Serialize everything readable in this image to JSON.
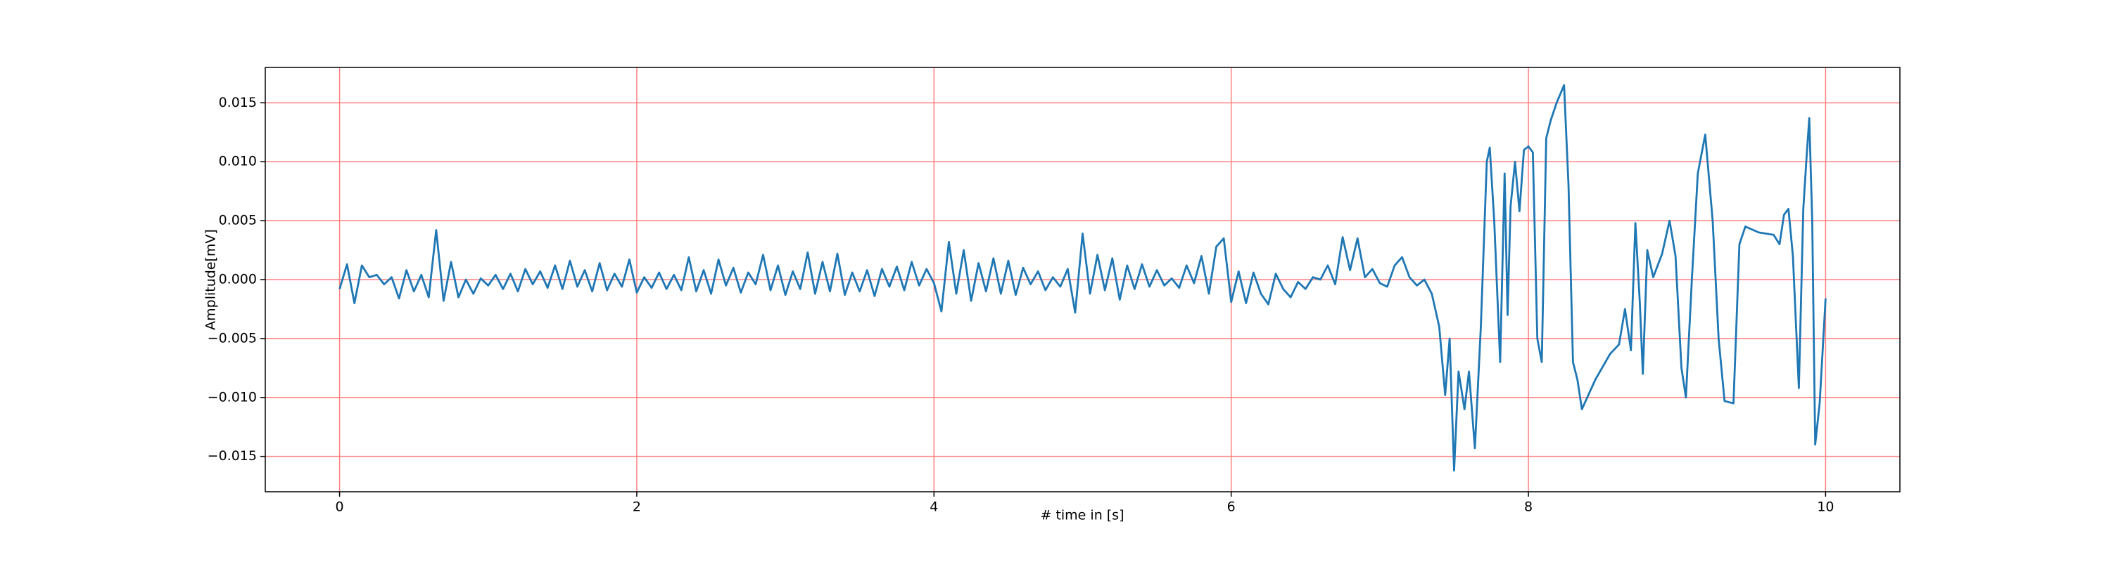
{
  "chart_data": {
    "type": "line",
    "xlabel": "# time in [s]",
    "ylabel": "Amplitude[mV]",
    "color": "#1f77b4",
    "grid": true,
    "grid_color": "#ff8080",
    "xlim": [
      -0.5,
      10.5
    ],
    "ylim": [
      -0.018,
      0.018
    ],
    "xticks": [
      0,
      2,
      4,
      6,
      8,
      10
    ],
    "yticks": [
      {
        "value": -0.015,
        "label": "−0.015"
      },
      {
        "value": -0.01,
        "label": "−0.010"
      },
      {
        "value": -0.005,
        "label": "−0.005"
      },
      {
        "value": 0,
        "label": "0.000"
      },
      {
        "value": 0.005,
        "label": "0.005"
      },
      {
        "value": 0.01,
        "label": "0.010"
      },
      {
        "value": 0.015,
        "label": "0.015"
      }
    ],
    "x": [
      0,
      0.05,
      0.1,
      0.15,
      0.2,
      0.25,
      0.3,
      0.35,
      0.4,
      0.45,
      0.5,
      0.55,
      0.6,
      0.65,
      0.7,
      0.75,
      0.8,
      0.85,
      0.9,
      0.95,
      1,
      1.05,
      1.1,
      1.15,
      1.2,
      1.25,
      1.3,
      1.35,
      1.4,
      1.45,
      1.5,
      1.55,
      1.6,
      1.65,
      1.7,
      1.75,
      1.8,
      1.85,
      1.9,
      1.95,
      2,
      2.05,
      2.1,
      2.15,
      2.2,
      2.25,
      2.3,
      2.35,
      2.4,
      2.45,
      2.5,
      2.55,
      2.6,
      2.65,
      2.7,
      2.75,
      2.8,
      2.85,
      2.9,
      2.95,
      3,
      3.05,
      3.1,
      3.15,
      3.2,
      3.25,
      3.3,
      3.35,
      3.4,
      3.45,
      3.5,
      3.55,
      3.6,
      3.65,
      3.7,
      3.75,
      3.8,
      3.85,
      3.9,
      3.95,
      4,
      4.05,
      4.1,
      4.15,
      4.2,
      4.25,
      4.3,
      4.35,
      4.4,
      4.45,
      4.5,
      4.55,
      4.6,
      4.65,
      4.7,
      4.75,
      4.8,
      4.85,
      4.9,
      4.95,
      5,
      5.05,
      5.1,
      5.15,
      5.2,
      5.25,
      5.3,
      5.35,
      5.4,
      5.45,
      5.5,
      5.55,
      5.6,
      5.65,
      5.7,
      5.75,
      5.8,
      5.85,
      5.9,
      5.95,
      6,
      6.05,
      6.1,
      6.15,
      6.2,
      6.25,
      6.3,
      6.35,
      6.4,
      6.45,
      6.5,
      6.55,
      6.6,
      6.65,
      6.7,
      6.75,
      6.8,
      6.85,
      6.9,
      6.95,
      7,
      7.05,
      7.1,
      7.15,
      7.2,
      7.25,
      7.3,
      7.35,
      7.4,
      7.44,
      7.47,
      7.5,
      7.53,
      7.57,
      7.6,
      7.64,
      7.68,
      7.72,
      7.74,
      7.77,
      7.81,
      7.84,
      7.86,
      7.88,
      7.91,
      7.94,
      7.97,
      8,
      8.03,
      8.06,
      8.09,
      8.12,
      8.15,
      8.19,
      8.24,
      8.27,
      8.3,
      8.33,
      8.36,
      8.45,
      8.55,
      8.61,
      8.65,
      8.69,
      8.72,
      8.75,
      8.77,
      8.8,
      8.84,
      8.9,
      8.95,
      8.99,
      9.03,
      9.06,
      9.1,
      9.14,
      9.19,
      9.24,
      9.28,
      9.32,
      9.38,
      9.42,
      9.46,
      9.55,
      9.65,
      9.69,
      9.72,
      9.75,
      9.78,
      9.82,
      9.85,
      9.87,
      9.89,
      9.91,
      9.93,
      9.96,
      10
    ],
    "values": [
      -0.0008,
      0.0013,
      -0.002,
      0.0012,
      0.0002,
      0.0004,
      -0.0004,
      0.0002,
      -0.0016,
      0.0008,
      -0.001,
      0.0004,
      -0.0015,
      0.0042,
      -0.0018,
      0.0015,
      -0.0015,
      0,
      -0.0012,
      0.0001,
      -0.0005,
      0.0004,
      -0.0008,
      0.0005,
      -0.001,
      0.0009,
      -0.0004,
      0.0007,
      -0.0007,
      0.0012,
      -0.0008,
      0.0016,
      -0.0006,
      0.0008,
      -0.001,
      0.0014,
      -0.0009,
      0.0005,
      -0.0006,
      0.0017,
      -0.0011,
      0.0002,
      -0.0007,
      0.0006,
      -0.0008,
      0.0004,
      -0.0009,
      0.0019,
      -0.001,
      0.0008,
      -0.0012,
      0.0017,
      -0.0005,
      0.001,
      -0.0011,
      0.0006,
      -0.0004,
      0.0021,
      -0.0009,
      0.0012,
      -0.0013,
      0.0007,
      -0.0008,
      0.0023,
      -0.0012,
      0.0015,
      -0.001,
      0.0022,
      -0.0013,
      0.0006,
      -0.001,
      0.0008,
      -0.0014,
      0.0009,
      -0.0006,
      0.0011,
      -0.0009,
      0.0015,
      -0.0005,
      0.0009,
      -0.0003,
      -0.0027,
      0.0032,
      -0.0012,
      0.0025,
      -0.0018,
      0.0014,
      -0.001,
      0.0018,
      -0.0012,
      0.0016,
      -0.0013,
      0.001,
      -0.0004,
      0.0007,
      -0.0009,
      0.0002,
      -0.0006,
      0.0009,
      -0.0028,
      0.0039,
      -0.0012,
      0.0021,
      -0.0009,
      0.0018,
      -0.0017,
      0.0012,
      -0.0008,
      0.0013,
      -0.0006,
      0.0008,
      -0.0005,
      0.0001,
      -0.0007,
      0.0012,
      -0.0003,
      0.002,
      -0.0012,
      0.0028,
      0.0035,
      -0.0019,
      0.0007,
      -0.002,
      0.0006,
      -0.0012,
      -0.0021,
      0.0005,
      -0.0008,
      -0.0015,
      -0.0002,
      -0.0008,
      0.0002,
      0,
      0.0012,
      -0.0004,
      0.0036,
      0.0008,
      0.0035,
      0.0002,
      0.0009,
      -0.0003,
      -0.0006,
      0.0012,
      0.0019,
      0.0002,
      -0.0005,
      0,
      -0.0012,
      -0.004,
      -0.0098,
      -0.005,
      -0.0162,
      -0.0078,
      -0.011,
      -0.0078,
      -0.0143,
      -0.004,
      0.01,
      0.0112,
      0.005,
      -0.007,
      0.009,
      -0.003,
      0.0062,
      0.01,
      0.0058,
      0.011,
      0.0113,
      0.0108,
      -0.005,
      -0.007,
      0.012,
      0.0135,
      0.015,
      0.0165,
      0.008,
      -0.007,
      -0.0085,
      -0.011,
      -0.0085,
      -0.0063,
      -0.0055,
      -0.0025,
      -0.006,
      0.0048,
      -0.002,
      -0.008,
      0.0025,
      0.0002,
      0.0022,
      0.005,
      0.002,
      -0.0075,
      -0.01,
      0,
      0.009,
      0.0123,
      0.005,
      -0.005,
      -0.0103,
      -0.0105,
      0.003,
      0.0045,
      0.004,
      0.0038,
      0.003,
      0.0055,
      0.006,
      0.002,
      -0.0092,
      0.006,
      0.01,
      0.0137,
      0.005,
      -0.014,
      -0.0105,
      -0.0016
    ]
  }
}
